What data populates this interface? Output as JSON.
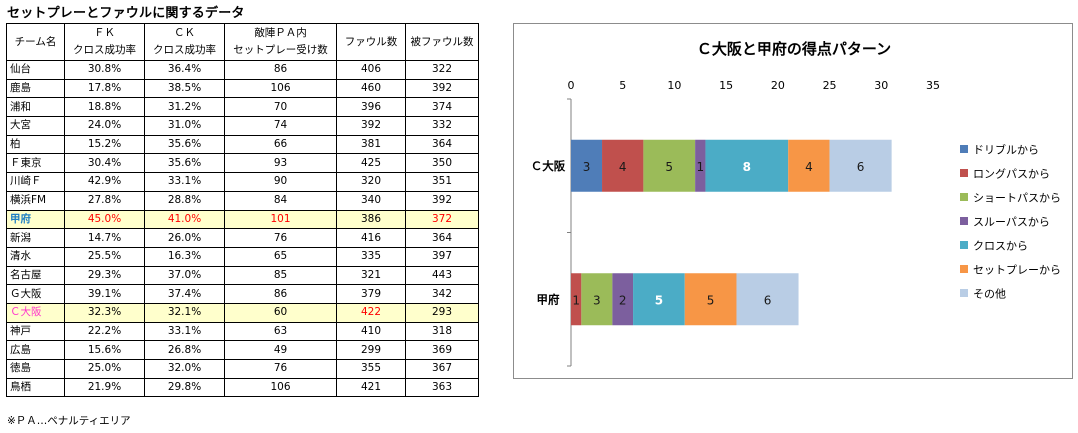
{
  "page_title": "セットプレーとファウルに関するデータ",
  "table": {
    "headers": [
      {
        "lines": [
          "チーム名"
        ]
      },
      {
        "lines": [
          "ＦＫ",
          "クロス成功率"
        ]
      },
      {
        "lines": [
          "ＣＫ",
          "クロス成功率"
        ]
      },
      {
        "lines": [
          "敵陣ＰＡ内",
          "セットプレー受け数"
        ]
      },
      {
        "lines": [
          "ファウル数"
        ]
      },
      {
        "lines": [
          "被ファウル数"
        ]
      }
    ],
    "rows": [
      {
        "team": "仙台",
        "fk": "30.8%",
        "ck": "36.4%",
        "setplay": "86",
        "fouls": "406",
        "fouled": "322"
      },
      {
        "team": "鹿島",
        "fk": "17.8%",
        "ck": "38.5%",
        "setplay": "106",
        "fouls": "460",
        "fouled": "392"
      },
      {
        "team": "浦和",
        "fk": "18.8%",
        "ck": "31.2%",
        "setplay": "70",
        "fouls": "396",
        "fouled": "374"
      },
      {
        "team": "大宮",
        "fk": "24.0%",
        "ck": "31.0%",
        "setplay": "74",
        "fouls": "392",
        "fouled": "332"
      },
      {
        "team": "柏",
        "fk": "15.2%",
        "ck": "35.6%",
        "setplay": "66",
        "fouls": "381",
        "fouled": "364"
      },
      {
        "team": "Ｆ東京",
        "fk": "30.4%",
        "ck": "35.6%",
        "setplay": "93",
        "fouls": "425",
        "fouled": "350"
      },
      {
        "team": "川崎Ｆ",
        "fk": "42.9%",
        "ck": "33.1%",
        "setplay": "90",
        "fouls": "320",
        "fouled": "351"
      },
      {
        "team": "横浜FM",
        "fk": "27.8%",
        "ck": "28.8%",
        "setplay": "84",
        "fouls": "340",
        "fouled": "392"
      },
      {
        "team": "甲府",
        "fk": "45.0%",
        "ck": "41.0%",
        "setplay": "101",
        "fouls": "386",
        "fouled": "372",
        "highlight": "kofu",
        "red_cols": [
          "fk",
          "ck",
          "setplay",
          "fouled"
        ]
      },
      {
        "team": "新潟",
        "fk": "14.7%",
        "ck": "26.0%",
        "setplay": "76",
        "fouls": "416",
        "fouled": "364"
      },
      {
        "team": "清水",
        "fk": "25.5%",
        "ck": "16.3%",
        "setplay": "65",
        "fouls": "335",
        "fouled": "397"
      },
      {
        "team": "名古屋",
        "fk": "29.3%",
        "ck": "37.0%",
        "setplay": "85",
        "fouls": "321",
        "fouled": "443"
      },
      {
        "team": "Ｇ大阪",
        "fk": "39.1%",
        "ck": "37.4%",
        "setplay": "86",
        "fouls": "379",
        "fouled": "342"
      },
      {
        "team": "Ｃ大阪",
        "fk": "32.3%",
        "ck": "32.1%",
        "setplay": "60",
        "fouls": "422",
        "fouled": "293",
        "highlight": "osaka",
        "red_cols": [
          "fouls"
        ]
      },
      {
        "team": "神戸",
        "fk": "22.2%",
        "ck": "33.1%",
        "setplay": "63",
        "fouls": "410",
        "fouled": "318"
      },
      {
        "team": "広島",
        "fk": "15.6%",
        "ck": "26.8%",
        "setplay": "49",
        "fouls": "299",
        "fouled": "369"
      },
      {
        "team": "徳島",
        "fk": "25.0%",
        "ck": "32.0%",
        "setplay": "76",
        "fouls": "355",
        "fouled": "367"
      },
      {
        "team": "鳥栖",
        "fk": "21.9%",
        "ck": "29.8%",
        "setplay": "106",
        "fouls": "421",
        "fouled": "363"
      }
    ]
  },
  "footnote": "※ＰＡ…ペナルティエリア",
  "chart_data": {
    "type": "bar",
    "orientation": "horizontal",
    "stacked": true,
    "title": "Ｃ大阪と甲府の得点パターン",
    "categories": [
      "Ｃ大阪",
      "甲府"
    ],
    "xlim": [
      0,
      35
    ],
    "xticks": [
      0,
      5,
      10,
      15,
      20,
      25,
      30,
      35
    ],
    "x_axis_position": "top",
    "grid": false,
    "legend_position": "right",
    "series": [
      {
        "name": "ドリブルから",
        "color": "#4f7db8",
        "values": [
          3,
          0
        ]
      },
      {
        "name": "ロングパスから",
        "color": "#c0504d",
        "values": [
          4,
          1
        ]
      },
      {
        "name": "ショートパスから",
        "color": "#9bbb59",
        "values": [
          5,
          3
        ]
      },
      {
        "name": "スルーパスから",
        "color": "#7c5f9e",
        "values": [
          1,
          2
        ]
      },
      {
        "name": "クロスから",
        "color": "#4bacc6",
        "values": [
          8,
          5
        ]
      },
      {
        "name": "セットプレーから",
        "color": "#f79646",
        "values": [
          4,
          5
        ]
      },
      {
        "name": "その他",
        "color": "#b9cde5",
        "values": [
          6,
          6
        ]
      }
    ]
  }
}
